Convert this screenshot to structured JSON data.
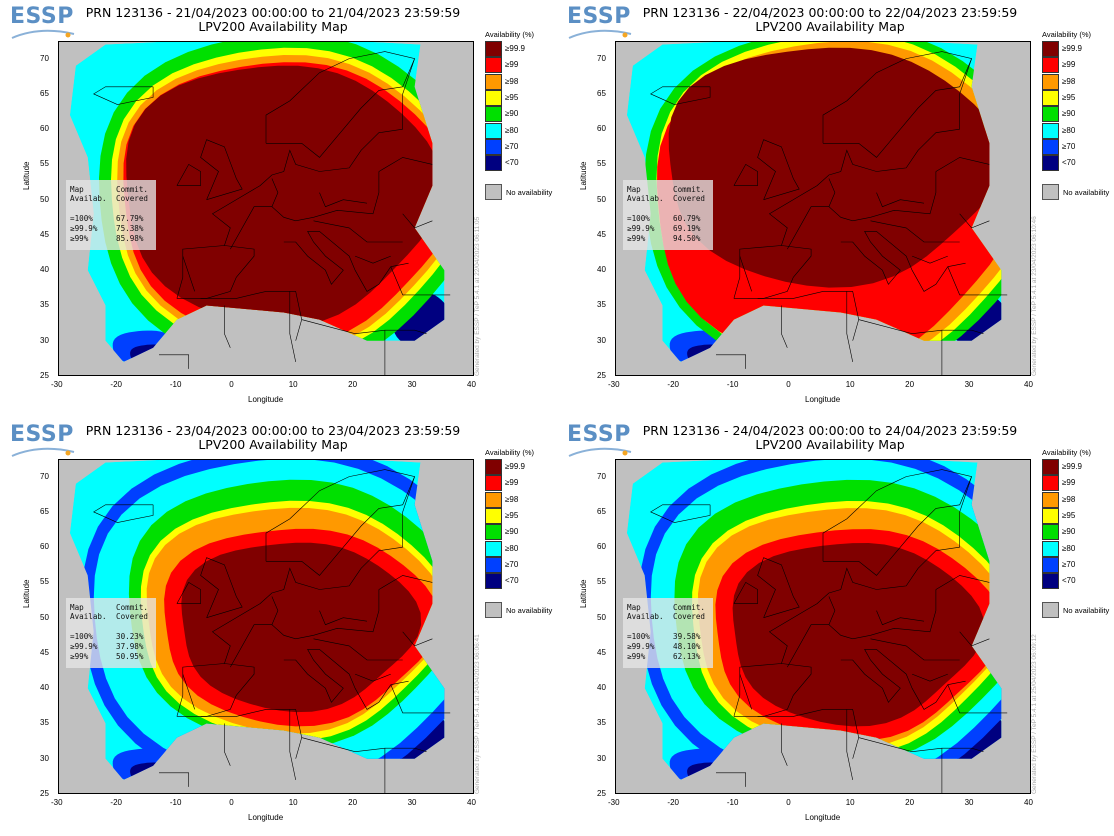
{
  "logo_text": "ESSP",
  "colors": {
    "c999": "#800000",
    "c99": "#ff0000",
    "c98": "#ff9900",
    "c95": "#ffff00",
    "c90": "#00e000",
    "c80": "#00ffff",
    "c70": "#0040ff",
    "clt70": "#000080",
    "noavail": "#c0c0c0"
  },
  "legend": {
    "title": "Availability (%)",
    "items": [
      {
        "label": "≥99.9",
        "color": "#800000"
      },
      {
        "label": "≥99",
        "color": "#ff0000"
      },
      {
        "label": "≥98",
        "color": "#ff9900"
      },
      {
        "label": "≥95",
        "color": "#ffff00"
      },
      {
        "label": "≥90",
        "color": "#00e000"
      },
      {
        "label": "≥80",
        "color": "#00ffff"
      },
      {
        "label": "≥70",
        "color": "#0040ff"
      },
      {
        "label": "<70",
        "color": "#000080"
      }
    ],
    "no_availability": "No availability"
  },
  "axes": {
    "xlabel": "Longitude",
    "ylabel": "Latitude",
    "xticks": [
      "-30",
      "-20",
      "-10",
      "0",
      "10",
      "20",
      "30",
      "40"
    ],
    "yticks": [
      "70",
      "65",
      "60",
      "55",
      "50",
      "45",
      "40",
      "35",
      "30",
      "25"
    ]
  },
  "stats_headers": {
    "col1": "Map\nAvailab.",
    "col2": "Commit.\nCovered"
  },
  "stats_rows": [
    "=100%",
    "≥99.9%",
    "≥99%"
  ],
  "panels": [
    {
      "title1": "PRN 123136 - 21/04/2023 00:00:00 to 21/04/2023 23:59:59",
      "title2": "LPV200 Availability Map",
      "stats": [
        "67.79%",
        "75.38%",
        "85.98%"
      ],
      "generated": "Generated by ESSP / TeP 5.4.1 at 22/04/2023 06:11:05",
      "pattern": "full"
    },
    {
      "title1": "PRN 123136 - 22/04/2023 00:00:00 to 22/04/2023 23:59:59",
      "title2": "LPV200 Availability Map",
      "stats": [
        "60.79%",
        "69.19%",
        "94.50%"
      ],
      "generated": "Generated by ESSP / TeP 5.4.1 at 23/04/2023 06:10:46",
      "pattern": "north"
    },
    {
      "title1": "PRN 123136 - 23/04/2023 00:00:00 to 23/04/2023 23:59:59",
      "title2": "LPV200 Availability Map",
      "stats": [
        "30.23%",
        "37.98%",
        "50.95%"
      ],
      "generated": "Generated by ESSP / TeP 5.4.1 at 24/04/2023 06:06:41",
      "pattern": "core"
    },
    {
      "title1": "PRN 123136 - 24/04/2023 00:00:00 to 24/04/2023 23:59:59",
      "title2": "LPV200 Availability Map",
      "stats": [
        "39.58%",
        "48.10%",
        "62.13%"
      ],
      "generated": "Generated by ESSP / TeP 5.4.1 at 25/04/2023 06:09:12",
      "pattern": "core2"
    }
  ]
}
